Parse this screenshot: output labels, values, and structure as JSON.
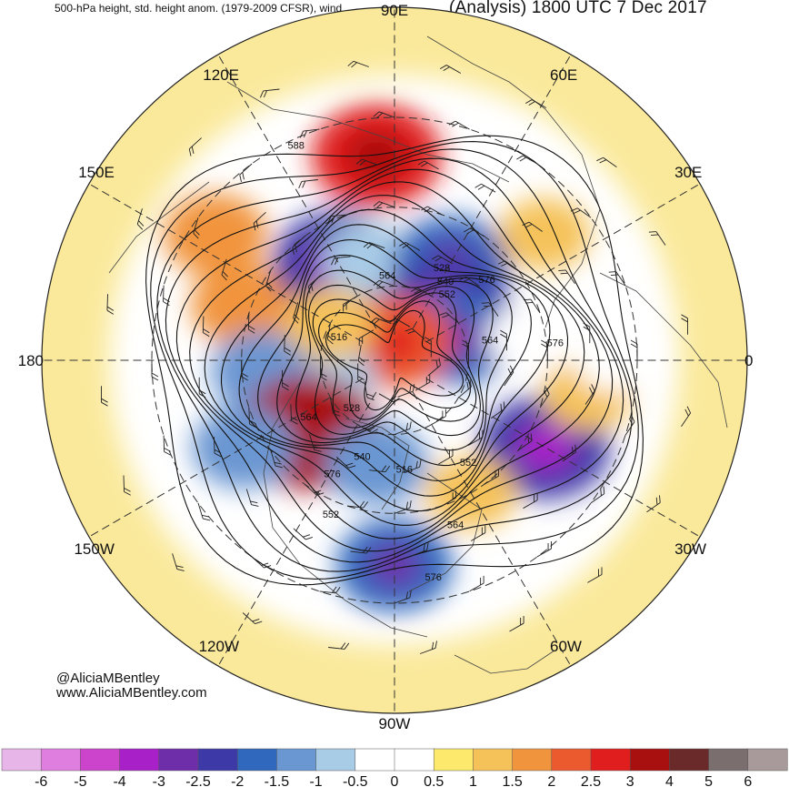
{
  "header": {
    "description": "500-hPa height, std. height anom. (1979-2009 CFSR), wind",
    "analysis_time": "(Analysis) 1800 UTC 7 Dec 2017"
  },
  "map": {
    "projection": "north-polar-stereographic",
    "longitude_labels": [
      {
        "text": "90E",
        "lon": 90
      },
      {
        "text": "60E",
        "lon": 60
      },
      {
        "text": "30E",
        "lon": 30
      },
      {
        "text": "0",
        "lon": 0
      },
      {
        "text": "30W",
        "lon": -30
      },
      {
        "text": "60W",
        "lon": -60
      },
      {
        "text": "90W",
        "lon": -90
      },
      {
        "text": "120W",
        "lon": -120
      },
      {
        "text": "150W",
        "lon": -150
      },
      {
        "text": "180",
        "lon": 180
      },
      {
        "text": "150E",
        "lon": 150
      },
      {
        "text": "120E",
        "lon": 120
      }
    ],
    "height_contour_labels": [
      {
        "text": "588",
        "region": "east-asia"
      },
      {
        "text": "564",
        "region": "siberia"
      },
      {
        "text": "576",
        "region": "scandinavia"
      },
      {
        "text": "552",
        "region": "northwest-russia"
      },
      {
        "text": "540",
        "region": "northwest-russia"
      },
      {
        "text": "528",
        "region": "northwest-russia"
      },
      {
        "text": "516",
        "region": "east-siberian-sea"
      },
      {
        "text": "564",
        "region": "norwegian-sea"
      },
      {
        "text": "576",
        "region": "north-atlantic"
      },
      {
        "text": "564",
        "region": "alaska"
      },
      {
        "text": "528",
        "region": "beaufort-sea"
      },
      {
        "text": "576",
        "region": "western-canada"
      },
      {
        "text": "540",
        "region": "canada"
      },
      {
        "text": "516",
        "region": "hudson-bay"
      },
      {
        "text": "552",
        "region": "labrador"
      },
      {
        "text": "552",
        "region": "western-us"
      },
      {
        "text": "564",
        "region": "great-lakes"
      },
      {
        "text": "576",
        "region": "southeast-us"
      }
    ]
  },
  "colorbar": {
    "units": "standardized anomaly",
    "labels": [
      "-6",
      "-5",
      "-4",
      "-3",
      "-2.5",
      "-2",
      "-1.5",
      "-1",
      "-0.5",
      "0",
      "0.5",
      "1",
      "1.5",
      "2",
      "2.5",
      "3",
      "4",
      "5",
      "6"
    ],
    "colors": [
      "#e8b5e8",
      "#e07ee0",
      "#cc44cc",
      "#a820c8",
      "#6e2eaa",
      "#3d3aa8",
      "#2f68bd",
      "#6a96d2",
      "#a8cbe6",
      "#ffffff",
      "#ffffff",
      "#fde96b",
      "#f5c25a",
      "#f1943e",
      "#eb5a2e",
      "#e01e1e",
      "#a81010",
      "#6a2a2a",
      "#7a6e6e",
      "#a89a9a"
    ]
  },
  "anomalies": [
    {
      "lon": 95,
      "lat": 38,
      "value": 2.5
    },
    {
      "lon": 145,
      "lat": 35,
      "value": 1.5
    },
    {
      "lon": 160,
      "lat": 48,
      "value": 1.5
    },
    {
      "lon": 120,
      "lat": 60,
      "value": -2.5
    },
    {
      "lon": 105,
      "lat": 62,
      "value": -1
    },
    {
      "lon": 60,
      "lat": 60,
      "value": -2
    },
    {
      "lon": 45,
      "lat": 70,
      "value": -2.5
    },
    {
      "lon": 20,
      "lat": 72,
      "value": -2
    },
    {
      "lon": 10,
      "lat": 55,
      "value": -0.5
    },
    {
      "lon": 90,
      "lat": 85,
      "value": 2
    },
    {
      "lon": -165,
      "lat": 72,
      "value": -1
    },
    {
      "lon": -175,
      "lat": 55,
      "value": -1.5
    },
    {
      "lon": -140,
      "lat": 60,
      "value": 3
    },
    {
      "lon": -150,
      "lat": 45,
      "value": -1.5
    },
    {
      "lon": -100,
      "lat": 62,
      "value": -1.5
    },
    {
      "lon": -90,
      "lat": 38,
      "value": -2
    },
    {
      "lon": -30,
      "lat": 45,
      "value": -2.5
    },
    {
      "lon": -10,
      "lat": 40,
      "value": 1
    },
    {
      "lon": 40,
      "lat": 40,
      "value": 1
    },
    {
      "lon": -60,
      "lat": 50,
      "value": 1
    },
    {
      "lon": 150,
      "lat": 70,
      "value": 1
    },
    {
      "lon": 0,
      "lat": 35,
      "value": -0.5
    }
  ],
  "credit": {
    "handle": "@AliciaMBentley",
    "website": "www.AliciaMBentley.com"
  }
}
